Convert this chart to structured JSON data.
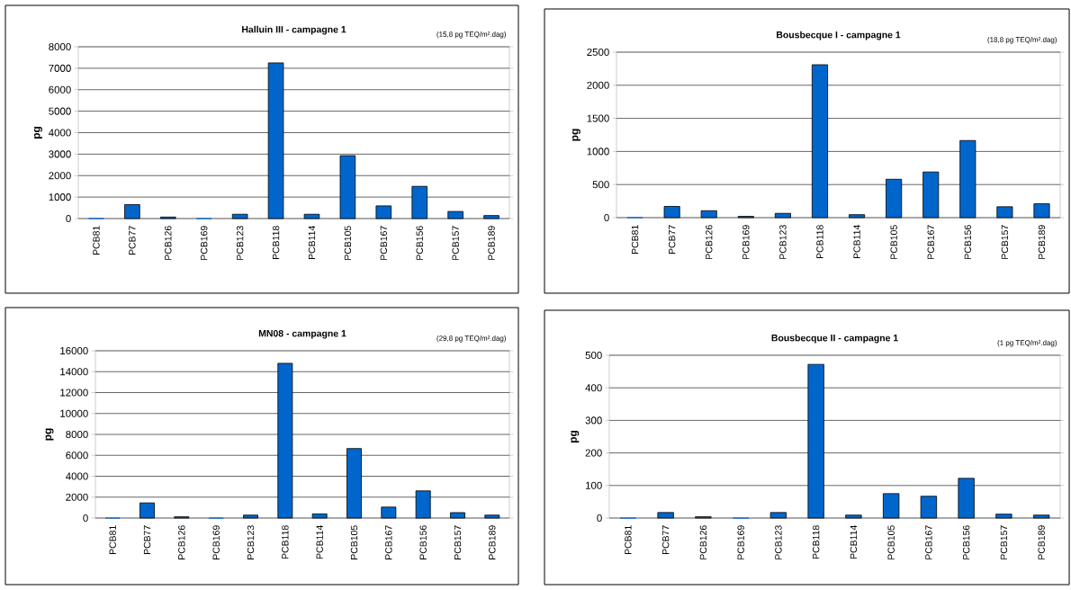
{
  "chart_data": [
    {
      "type": "bar",
      "title": "Halluin III - campagne 1",
      "subtitle": "(15,8 pg TEQ/m².dag)",
      "ylabel": "pg",
      "categories": [
        "PCB81",
        "PCB77",
        "PCB126",
        "PCB169",
        "PCB123",
        "PCB118",
        "PCB114",
        "PCB105",
        "PCB167",
        "PCB156",
        "PCB157",
        "PCB189"
      ],
      "values": [
        0,
        650,
        70,
        0,
        200,
        7250,
        200,
        2930,
        590,
        1500,
        330,
        140
      ],
      "color": "#0066cc",
      "ylim": [
        0,
        8000
      ],
      "yticks": [
        0,
        1000,
        2000,
        3000,
        4000,
        5000,
        6000,
        7000,
        8000
      ],
      "grid": "y"
    },
    {
      "type": "bar",
      "title": "Bousbecque I - campagne 1",
      "subtitle": "(18,8 pg TEQ/m².dag)",
      "ylabel": "pg",
      "categories": [
        "PCB81",
        "PCB77",
        "PCB126",
        "PCB169",
        "PCB123",
        "PCB118",
        "PCB114",
        "PCB105",
        "PCB167",
        "PCB156",
        "PCB157",
        "PCB189"
      ],
      "values": [
        0,
        170,
        105,
        20,
        65,
        2310,
        45,
        580,
        690,
        1165,
        165,
        210
      ],
      "color": "#0066cc",
      "ylim": [
        0,
        2500
      ],
      "yticks": [
        0,
        500,
        1000,
        1500,
        2000,
        2500
      ],
      "grid": "y"
    },
    {
      "type": "bar",
      "title": "MN08 - campagne 1",
      "subtitle": "(29,8 pg TEQ/m².dag)",
      "ylabel": "pg",
      "categories": [
        "PCB81",
        "PCB77",
        "PCB126",
        "PCB169",
        "PCB123",
        "PCB118",
        "PCB114",
        "PCB105",
        "PCB167",
        "PCB156",
        "PCB157",
        "PCB189"
      ],
      "values": [
        0,
        1450,
        120,
        0,
        280,
        14800,
        400,
        6650,
        1050,
        2600,
        520,
        280
      ],
      "color": "#0066cc",
      "ylim": [
        0,
        16000
      ],
      "yticks": [
        0,
        2000,
        4000,
        6000,
        8000,
        10000,
        12000,
        14000,
        16000
      ],
      "grid": "y"
    },
    {
      "type": "bar",
      "title": "Bousbecque II - campagne 1",
      "subtitle": "(1 pg TEQ/m².dag)",
      "ylabel": "pg",
      "categories": [
        "PCB81",
        "PCB77",
        "PCB126",
        "PCB169",
        "PCB123",
        "PCB118",
        "PCB114",
        "PCB105",
        "PCB167",
        "PCB156",
        "PCB157",
        "PCB189"
      ],
      "values": [
        0,
        17,
        4,
        0,
        17,
        472,
        9,
        75,
        67,
        122,
        12,
        9
      ],
      "color": "#0066cc",
      "ylim": [
        0,
        500
      ],
      "yticks": [
        0,
        100,
        200,
        300,
        400,
        500
      ],
      "grid": "y"
    }
  ]
}
